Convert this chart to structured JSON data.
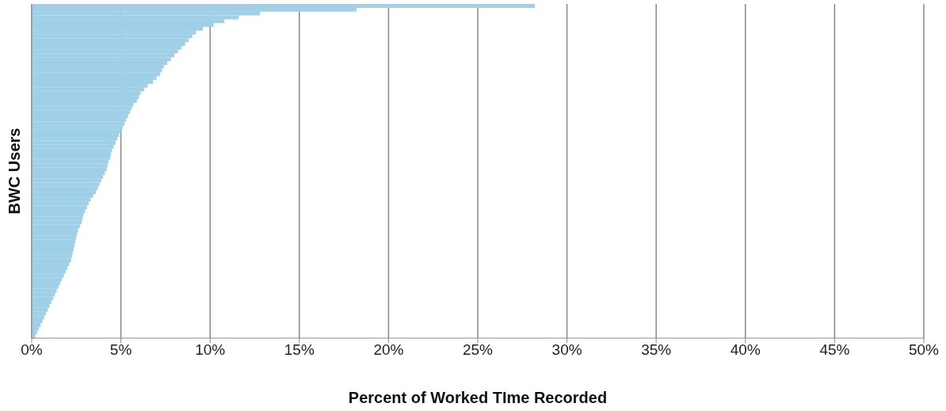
{
  "chart_data": {
    "type": "bar",
    "orientation": "horizontal",
    "xlabel": "Percent of Worked TIme Recorded",
    "ylabel": "BWC Users",
    "categories": [
      null,
      null,
      null,
      null,
      null,
      null,
      null,
      null,
      null,
      null,
      null,
      null,
      null,
      null,
      null,
      null,
      null,
      null,
      null,
      null,
      null,
      null,
      null,
      null,
      null,
      null,
      null,
      null,
      null,
      null,
      null,
      null,
      null,
      null,
      null,
      null,
      null,
      null,
      null,
      null,
      null,
      null,
      null,
      null,
      null,
      null,
      null,
      null,
      null,
      null,
      null,
      null,
      null,
      null,
      null,
      null,
      null,
      null,
      null,
      null,
      null,
      null,
      null,
      null,
      null,
      null,
      null,
      null,
      null,
      null,
      null,
      null,
      null,
      null,
      null,
      null,
      null,
      null,
      null,
      null,
      null,
      null,
      null,
      null,
      null,
      null,
      null,
      null
    ],
    "values": [
      28.2,
      18.2,
      12.8,
      11.6,
      10.8,
      10.2,
      9.6,
      9.2,
      9.0,
      8.8,
      8.6,
      8.4,
      8.2,
      8.0,
      7.8,
      7.6,
      7.4,
      7.3,
      7.2,
      7.0,
      6.8,
      6.5,
      6.3,
      6.1,
      6.0,
      5.9,
      5.7,
      5.6,
      5.5,
      5.4,
      5.3,
      5.2,
      5.1,
      5.0,
      4.9,
      4.8,
      4.7,
      4.6,
      4.5,
      4.45,
      4.4,
      4.3,
      4.25,
      4.2,
      4.1,
      4.0,
      3.9,
      3.8,
      3.7,
      3.6,
      3.45,
      3.3,
      3.2,
      3.1,
      3.0,
      2.9,
      2.85,
      2.8,
      2.7,
      2.6,
      2.55,
      2.5,
      2.45,
      2.4,
      2.35,
      2.3,
      2.25,
      2.2,
      2.1,
      2.0,
      1.9,
      1.8,
      1.7,
      1.6,
      1.5,
      1.4,
      1.3,
      1.2,
      1.1,
      1.0,
      0.9,
      0.8,
      0.7,
      0.6,
      0.5,
      0.4,
      0.3,
      0.2
    ],
    "color": "#9fd0e8",
    "xlim": [
      0,
      50
    ],
    "xticks": [
      {
        "value": 0,
        "label": "0%"
      },
      {
        "value": 5,
        "label": "5%"
      },
      {
        "value": 10,
        "label": "10%"
      },
      {
        "value": 15,
        "label": "15%"
      },
      {
        "value": 20,
        "label": "20%"
      },
      {
        "value": 25,
        "label": "25%"
      },
      {
        "value": 30,
        "label": "30%"
      },
      {
        "value": 35,
        "label": "35%"
      },
      {
        "value": 40,
        "label": "40%"
      },
      {
        "value": 45,
        "label": "45%"
      },
      {
        "value": 50,
        "label": "50%"
      }
    ],
    "grid": "x",
    "tick_labels": "x"
  }
}
